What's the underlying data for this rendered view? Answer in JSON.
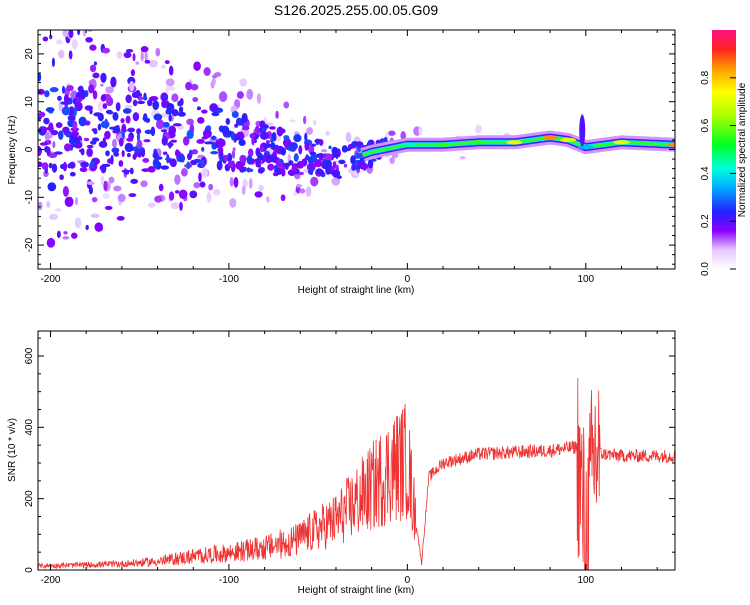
{
  "figure_title": "S126.2025.255.00.05.G09",
  "chart_data": [
    {
      "type": "heatmap",
      "title": "S126.2025.255.00.05.G09",
      "xlabel": "Height of straight line (km)",
      "ylabel": "Frequency (Hz)",
      "xlim": [
        -207,
        150
      ],
      "ylim": [
        -25,
        25
      ],
      "xticks": [
        -200,
        -100,
        0,
        100
      ],
      "xtick_labels": [
        "-200",
        "-100",
        "0",
        "100"
      ],
      "yticks": [
        20,
        10,
        0,
        -10,
        -20
      ],
      "ytick_labels": [
        "20",
        "10",
        "0",
        "-10",
        "-20"
      ],
      "colorbar": {
        "label": "Normalized spectral amplitude",
        "range": [
          0,
          1
        ],
        "ticks": [
          0.0,
          0.2,
          0.4,
          0.6,
          0.8
        ],
        "tick_labels": [
          "0.0",
          "0.2",
          "0.4",
          "0.6",
          "0.8"
        ]
      },
      "ridge": {
        "x": [
          -160,
          -140,
          -120,
          -100,
          -80,
          -60,
          -40,
          -20,
          0,
          20,
          40,
          60,
          80,
          90,
          100,
          120,
          150
        ],
        "freq": [
          4,
          3.5,
          3,
          2,
          0.5,
          -1,
          -3,
          -0.5,
          1,
          1,
          1.5,
          1.5,
          2.5,
          2,
          0.5,
          1.5,
          1
        ],
        "amplitude": [
          0.2,
          0.25,
          0.25,
          0.25,
          0.25,
          0.2,
          0.2,
          0.35,
          0.45,
          0.55,
          0.55,
          0.7,
          0.85,
          0.7,
          0.35,
          0.7,
          0.85
        ]
      }
    },
    {
      "type": "line",
      "xlabel": "Height of straight line (km)",
      "ylabel": "SNR (10 * v/v)",
      "xlim": [
        -207,
        150
      ],
      "ylim": [
        0,
        670
      ],
      "xticks": [
        -200,
        -100,
        0,
        100
      ],
      "xtick_labels": [
        "-200",
        "-100",
        "0",
        "100"
      ],
      "yticks": [
        0,
        200,
        400,
        600
      ],
      "ytick_labels": [
        "0",
        "200",
        "400",
        "600"
      ],
      "color": "#ee3333",
      "envelope": {
        "x": [
          -207,
          -180,
          -160,
          -140,
          -120,
          -100,
          -80,
          -60,
          -40,
          -20,
          -10,
          0,
          8,
          12,
          20,
          40,
          60,
          80,
          95,
          100,
          105,
          110,
          120,
          150
        ],
        "y": [
          12,
          15,
          18,
          25,
          40,
          50,
          65,
          90,
          140,
          230,
          280,
          310,
          20,
          260,
          300,
          325,
          330,
          335,
          345,
          80,
          330,
          325,
          320,
          320
        ]
      }
    }
  ]
}
